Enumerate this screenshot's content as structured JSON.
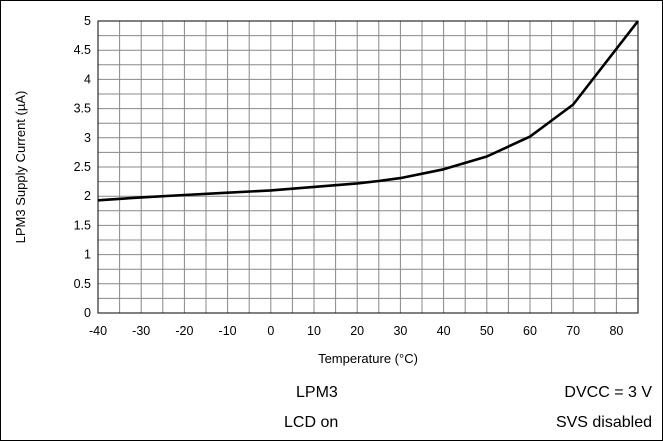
{
  "chart_data": {
    "type": "line",
    "title": "",
    "xlabel": "Temperature (°C)",
    "ylabel": "LPM3 Supply Current (µA)",
    "xlim": [
      -40,
      85
    ],
    "ylim": [
      0,
      5
    ],
    "x_ticks": [
      -40,
      -30,
      -20,
      -10,
      0,
      10,
      20,
      30,
      40,
      50,
      60,
      70,
      80
    ],
    "y_ticks": [
      0,
      0.5,
      1,
      1.5,
      2,
      2.5,
      3,
      3.5,
      4,
      4.5,
      5
    ],
    "x_grid_step": 5,
    "y_grid_step": 0.25,
    "grid": true,
    "legend": "none",
    "line_color": "#000000",
    "grid_color": "#888888",
    "series": [
      {
        "x": [
          -40,
          -30,
          -20,
          -10,
          0,
          10,
          20,
          25,
          30,
          40,
          50,
          60,
          70,
          85
        ],
        "values": [
          1.93,
          1.98,
          2.02,
          2.06,
          2.1,
          2.16,
          2.22,
          2.26,
          2.31,
          2.46,
          2.68,
          3.02,
          3.57,
          5.0
        ]
      }
    ]
  },
  "annotations": {
    "mode": "LPM3",
    "lcd": "LCD on",
    "dvcc": "DVCC = 3 V",
    "svs": "SVS disabled"
  }
}
